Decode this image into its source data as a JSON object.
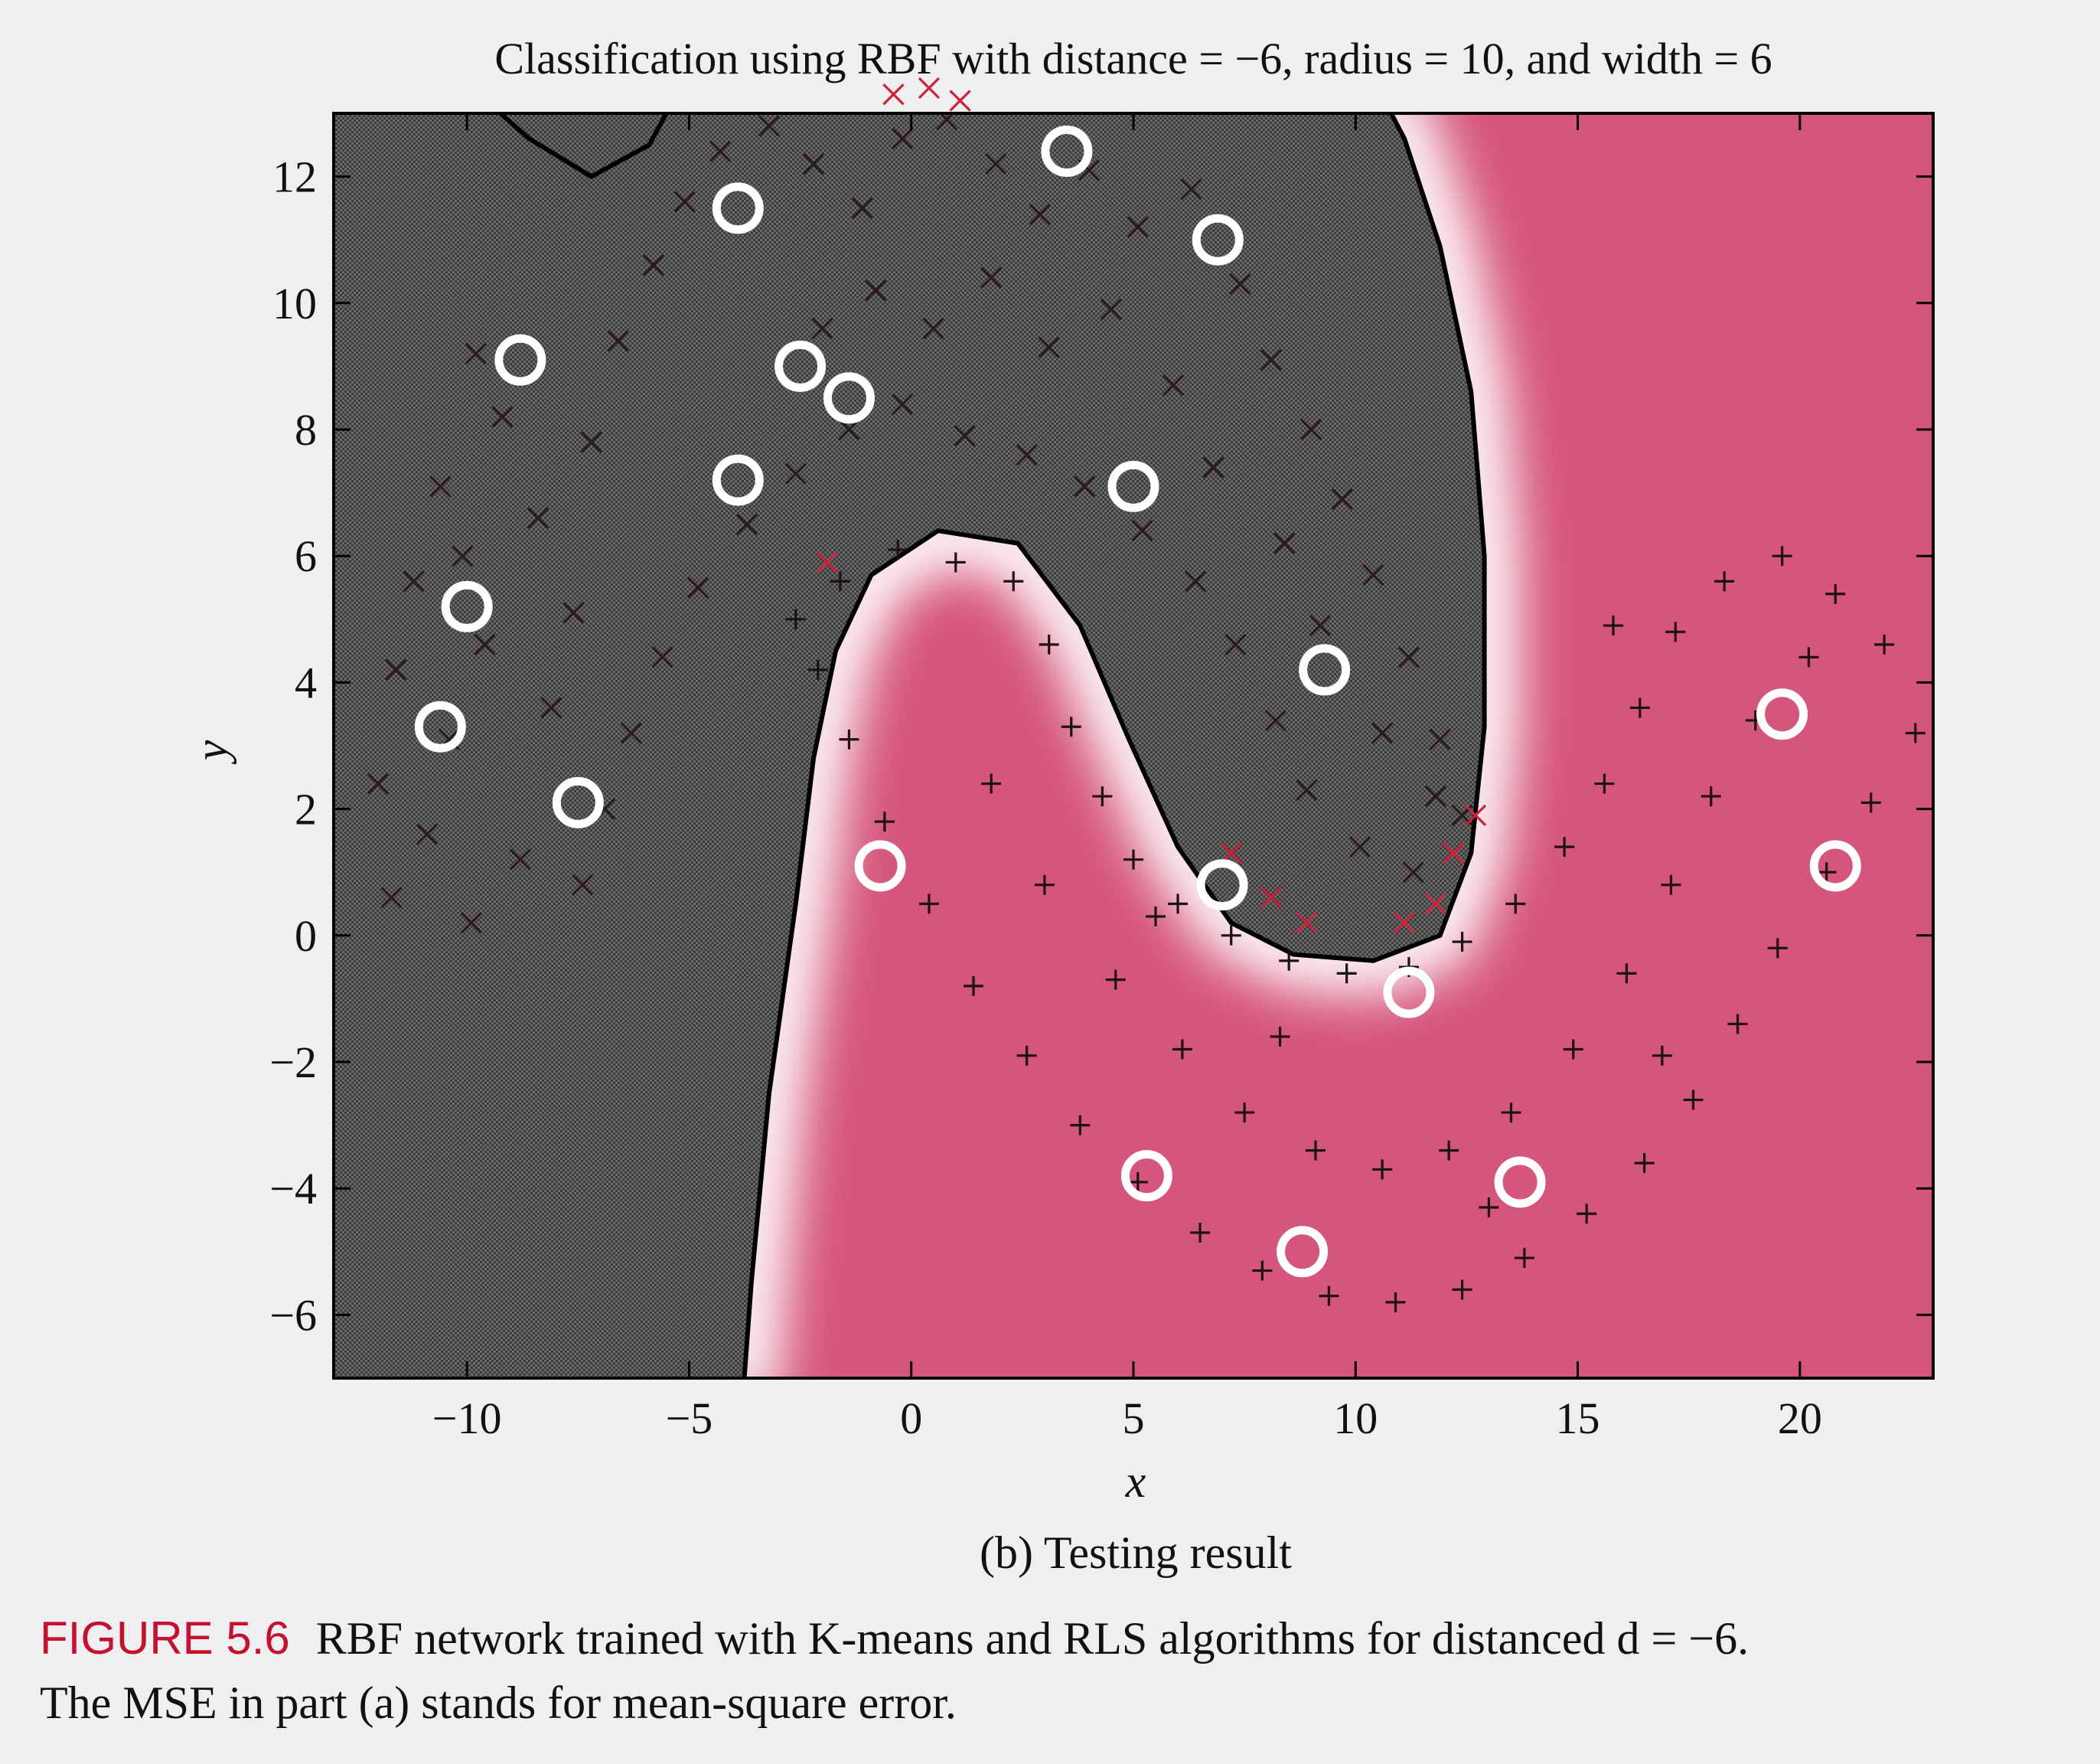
{
  "chart_data": {
    "type": "scatter",
    "title": "Classification using RBF with distance = −6, radius = 10, and width = 6",
    "subtitle": "(b) Testing result",
    "xlabel": "x",
    "ylabel": "y",
    "xlim": [
      -13,
      23
    ],
    "ylim": [
      -7,
      13
    ],
    "x_ticks": [
      -10,
      -5,
      0,
      5,
      10,
      15,
      20
    ],
    "y_ticks": [
      -6,
      -4,
      -2,
      0,
      2,
      4,
      6,
      8,
      10,
      12
    ],
    "x_tick_labels": [
      "−10",
      "−5",
      "0",
      "5",
      "10",
      "15",
      "20"
    ],
    "y_tick_labels": [
      "−6",
      "−4",
      "−2",
      "0",
      "2",
      "4",
      "6",
      "8",
      "10",
      "12"
    ],
    "grid": false,
    "series": [
      {
        "marker": "x",
        "color": "#2a1a1c",
        "points": [
          [
            -9.8,
            9.2
          ],
          [
            -9.2,
            8.2
          ],
          [
            -10.6,
            7.1
          ],
          [
            -10.1,
            6.0
          ],
          [
            -11.2,
            5.6
          ],
          [
            -9.6,
            4.6
          ],
          [
            -11.6,
            4.2
          ],
          [
            -10.4,
            3.1
          ],
          [
            -12.0,
            2.4
          ],
          [
            -10.9,
            1.6
          ],
          [
            -11.7,
            0.6
          ],
          [
            -9.9,
            0.2
          ],
          [
            -8.8,
            1.2
          ],
          [
            -8.1,
            3.6
          ],
          [
            -7.6,
            5.1
          ],
          [
            -8.4,
            6.6
          ],
          [
            -7.2,
            7.8
          ],
          [
            -6.6,
            9.4
          ],
          [
            -5.8,
            10.6
          ],
          [
            -5.1,
            11.6
          ],
          [
            -4.3,
            12.4
          ],
          [
            -3.2,
            12.8
          ],
          [
            -2.2,
            12.2
          ],
          [
            -1.1,
            11.5
          ],
          [
            -0.2,
            12.6
          ],
          [
            0.8,
            12.9
          ],
          [
            1.9,
            12.2
          ],
          [
            2.9,
            11.4
          ],
          [
            4.0,
            12.1
          ],
          [
            5.1,
            11.2
          ],
          [
            6.3,
            11.8
          ],
          [
            7.4,
            10.3
          ],
          [
            8.1,
            9.1
          ],
          [
            9.0,
            8.0
          ],
          [
            9.7,
            6.9
          ],
          [
            10.4,
            5.7
          ],
          [
            11.2,
            4.4
          ],
          [
            11.9,
            3.1
          ],
          [
            12.4,
            1.9
          ],
          [
            11.3,
            1.0
          ],
          [
            10.1,
            1.4
          ],
          [
            8.9,
            2.3
          ],
          [
            8.2,
            3.4
          ],
          [
            7.3,
            4.6
          ],
          [
            6.4,
            5.6
          ],
          [
            5.2,
            6.4
          ],
          [
            3.9,
            7.1
          ],
          [
            2.6,
            7.6
          ],
          [
            1.2,
            7.9
          ],
          [
            -0.2,
            8.4
          ],
          [
            -1.4,
            8.0
          ],
          [
            -2.6,
            7.3
          ],
          [
            -3.7,
            6.5
          ],
          [
            -4.8,
            5.5
          ],
          [
            -5.6,
            4.4
          ],
          [
            -6.3,
            3.2
          ],
          [
            -6.9,
            2.0
          ],
          [
            -7.4,
            0.8
          ],
          [
            -2.0,
            9.6
          ],
          [
            -0.8,
            10.2
          ],
          [
            0.5,
            9.6
          ],
          [
            1.8,
            10.4
          ],
          [
            3.1,
            9.3
          ],
          [
            4.5,
            9.9
          ],
          [
            5.9,
            8.7
          ],
          [
            6.8,
            7.4
          ],
          [
            8.4,
            6.2
          ],
          [
            9.2,
            4.9
          ],
          [
            10.6,
            3.2
          ],
          [
            11.8,
            2.2
          ]
        ],
        "misclassified_points": [
          [
            -1.9,
            5.9
          ],
          [
            -0.4,
            13.3
          ],
          [
            0.4,
            13.4
          ],
          [
            1.1,
            13.2
          ],
          [
            7.2,
            1.3
          ],
          [
            8.1,
            0.6
          ],
          [
            8.9,
            0.2
          ],
          [
            11.1,
            0.2
          ],
          [
            11.8,
            0.5
          ],
          [
            12.2,
            1.3
          ],
          [
            12.7,
            1.9
          ]
        ]
      },
      {
        "marker": "+",
        "color": "#1c1214",
        "points": [
          [
            -2.6,
            5.0
          ],
          [
            -1.6,
            5.6
          ],
          [
            -0.3,
            6.1
          ],
          [
            1.0,
            5.9
          ],
          [
            2.3,
            5.6
          ],
          [
            3.1,
            4.6
          ],
          [
            3.6,
            3.3
          ],
          [
            4.3,
            2.2
          ],
          [
            5.0,
            1.2
          ],
          [
            6.0,
            0.5
          ],
          [
            7.2,
            0.0
          ],
          [
            8.5,
            -0.4
          ],
          [
            9.8,
            -0.6
          ],
          [
            11.2,
            -0.5
          ],
          [
            12.4,
            -0.1
          ],
          [
            13.6,
            0.5
          ],
          [
            14.7,
            1.4
          ],
          [
            15.6,
            2.4
          ],
          [
            16.4,
            3.6
          ],
          [
            17.2,
            4.8
          ],
          [
            18.3,
            5.6
          ],
          [
            19.6,
            6.0
          ],
          [
            20.8,
            5.4
          ],
          [
            21.9,
            4.6
          ],
          [
            22.6,
            3.2
          ],
          [
            21.6,
            2.1
          ],
          [
            20.6,
            1.0
          ],
          [
            19.5,
            -0.2
          ],
          [
            18.6,
            -1.4
          ],
          [
            17.6,
            -2.6
          ],
          [
            16.5,
            -3.6
          ],
          [
            15.2,
            -4.4
          ],
          [
            13.8,
            -5.1
          ],
          [
            12.4,
            -5.6
          ],
          [
            10.9,
            -5.8
          ],
          [
            9.4,
            -5.7
          ],
          [
            7.9,
            -5.3
          ],
          [
            6.5,
            -4.7
          ],
          [
            5.1,
            -3.9
          ],
          [
            3.8,
            -3.0
          ],
          [
            2.6,
            -1.9
          ],
          [
            1.4,
            -0.8
          ],
          [
            0.4,
            0.5
          ],
          [
            -0.6,
            1.8
          ],
          [
            -1.4,
            3.1
          ],
          [
            -2.1,
            4.2
          ],
          [
            1.8,
            2.4
          ],
          [
            3.0,
            0.8
          ],
          [
            4.6,
            -0.7
          ],
          [
            6.1,
            -1.8
          ],
          [
            7.5,
            -2.8
          ],
          [
            9.1,
            -3.4
          ],
          [
            10.6,
            -3.7
          ],
          [
            12.1,
            -3.4
          ],
          [
            13.5,
            -2.8
          ],
          [
            14.9,
            -1.8
          ],
          [
            16.1,
            -0.6
          ],
          [
            17.1,
            0.8
          ],
          [
            18.0,
            2.2
          ],
          [
            19.0,
            3.4
          ],
          [
            20.2,
            4.4
          ],
          [
            15.8,
            4.9
          ],
          [
            16.9,
            -1.9
          ],
          [
            13.0,
            -4.3
          ],
          [
            8.3,
            -1.6
          ],
          [
            5.5,
            0.3
          ]
        ],
        "misclassified_points": []
      }
    ],
    "centers": [
      [
        -3.9,
        11.5
      ],
      [
        3.5,
        12.4
      ],
      [
        6.9,
        11.0
      ],
      [
        -8.8,
        9.1
      ],
      [
        -2.5,
        9.0
      ],
      [
        -1.4,
        8.5
      ],
      [
        -3.9,
        7.2
      ],
      [
        5.0,
        7.1
      ],
      [
        -10.0,
        5.2
      ],
      [
        9.3,
        4.2
      ],
      [
        -10.6,
        3.3
      ],
      [
        -7.5,
        2.1
      ],
      [
        -0.7,
        1.1
      ],
      [
        7.0,
        0.8
      ],
      [
        11.2,
        -0.9
      ],
      [
        19.6,
        3.5
      ],
      [
        20.8,
        1.1
      ],
      [
        5.3,
        -3.8
      ],
      [
        13.7,
        -3.9
      ],
      [
        8.8,
        -5.0
      ]
    ],
    "decision_regions": {
      "upper_region_color": "#5b5b5b",
      "lower_region_color": "#d5567a",
      "boundary_color": "#000000"
    }
  },
  "caption": {
    "label": "FIGURE 5.6",
    "line1": "RBF network trained with K-means and RLS algorithms for distanced d = −6.",
    "line2": "The MSE in part (a) stands for mean-square error."
  }
}
